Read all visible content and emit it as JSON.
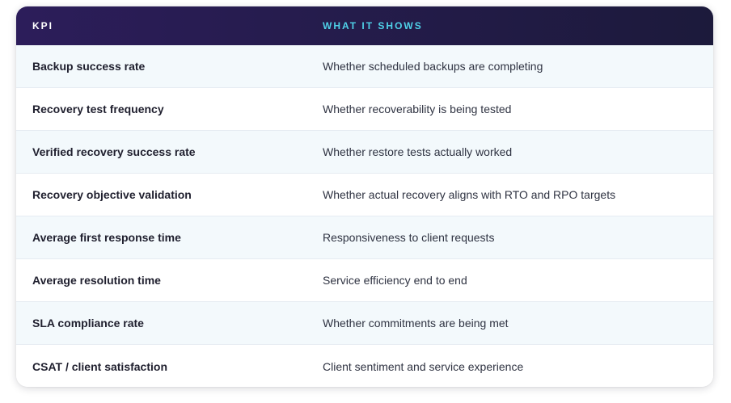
{
  "table": {
    "headers": {
      "kpi": "KPI",
      "what_it_shows": "WHAT IT SHOWS"
    },
    "rows": [
      {
        "kpi": "Backup success rate",
        "what_it_shows": "Whether scheduled backups are completing"
      },
      {
        "kpi": "Recovery test frequency",
        "what_it_shows": "Whether recoverability is being tested"
      },
      {
        "kpi": "Verified recovery success rate",
        "what_it_shows": "Whether restore tests actually worked"
      },
      {
        "kpi": "Recovery objective validation",
        "what_it_shows": "Whether actual recovery aligns with RTO and RPO targets"
      },
      {
        "kpi": "Average first response time",
        "what_it_shows": "Responsiveness to client requests"
      },
      {
        "kpi": "Average resolution time",
        "what_it_shows": "Service efficiency end to end"
      },
      {
        "kpi": "SLA compliance rate",
        "what_it_shows": "Whether commitments are being met"
      },
      {
        "kpi": "CSAT / client satisfaction",
        "what_it_shows": "Client sentiment and service experience"
      }
    ]
  },
  "colors": {
    "header_bg_start": "#2c1d5a",
    "header_bg_end": "#1c1a3b",
    "header_kpi_text": "#ffffff",
    "header_shows_text": "#4fd1e8",
    "row_alt_bg": "#f3f9fc"
  }
}
